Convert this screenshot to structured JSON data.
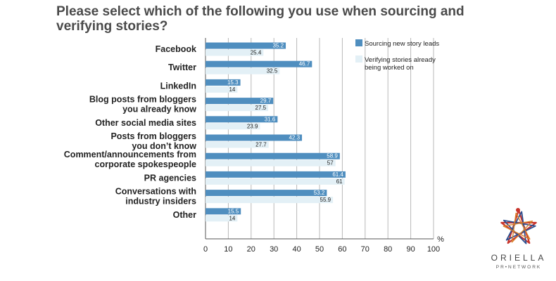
{
  "chart_data": {
    "type": "bar",
    "orientation": "horizontal",
    "title": "Please select which of the following you use when sourcing and verifying stories?",
    "categories": [
      "Facebook",
      "Twitter",
      "LinkedIn",
      "Blog posts from bloggers\nyou already know",
      "Other social media sites",
      "Posts from bloggers\nyou don’t know",
      "Comment/announcements from\ncorporate spokespeople",
      "PR agencies",
      "Conversations with\nindustry insiders",
      "Other"
    ],
    "series": [
      {
        "name": "Sourcing new story leads",
        "color": "#4f8ebf",
        "values": [
          35.2,
          46.7,
          15.3,
          29.7,
          31.6,
          42.3,
          58.9,
          61.4,
          53.2,
          15.5
        ]
      },
      {
        "name": "Verifying stories already being worked on",
        "color": "#e3f0f6",
        "values": [
          25.4,
          32.5,
          14,
          27.5,
          23.9,
          27.7,
          57,
          61,
          55.9,
          14
        ]
      }
    ],
    "xlim": [
      0,
      100
    ],
    "xticks": [
      0,
      10,
      20,
      30,
      40,
      50,
      60,
      70,
      80,
      90,
      100
    ],
    "unit_label": "%",
    "grid": true,
    "legend_position": "top-right"
  },
  "logo": {
    "name": "ORIELLA",
    "subtitle": "PR•NETWORK"
  }
}
